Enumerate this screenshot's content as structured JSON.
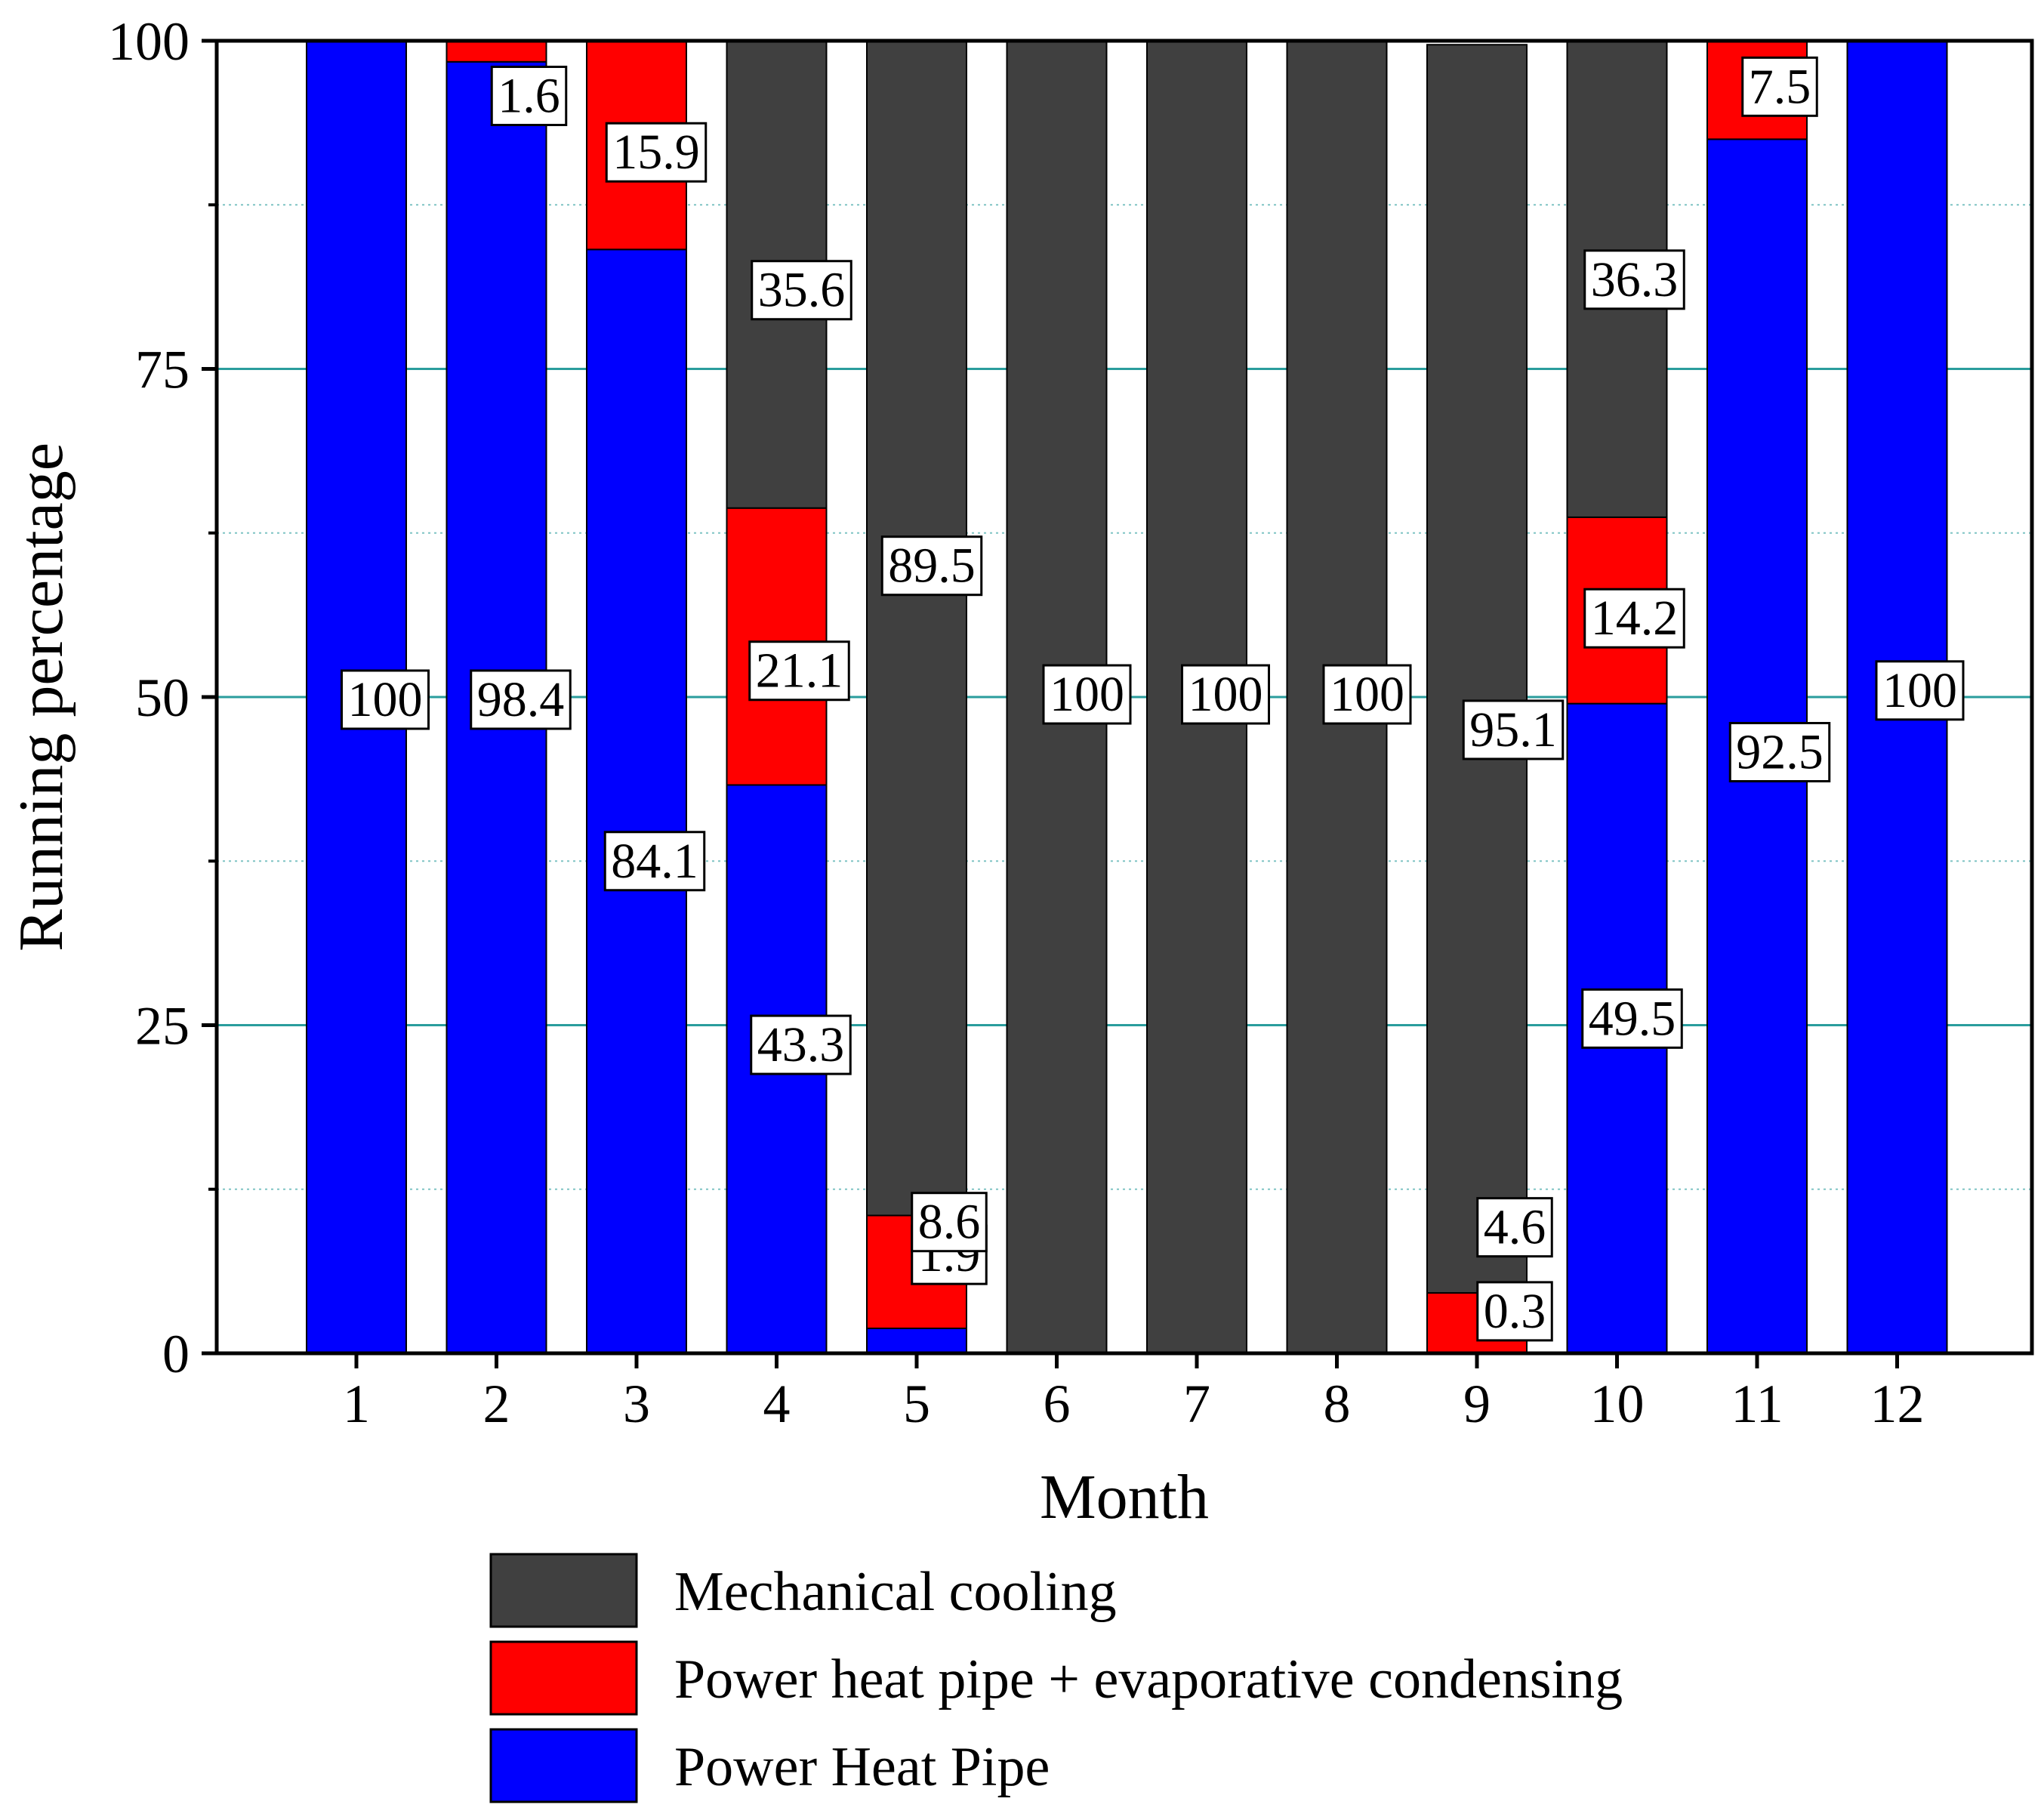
{
  "chart_data": {
    "type": "bar",
    "stacked": true,
    "xlabel": "Month",
    "ylabel": "Running percentage",
    "ylim": [
      0,
      100
    ],
    "yticks": [
      0,
      25,
      50,
      75,
      100
    ],
    "categories": [
      "1",
      "2",
      "3",
      "4",
      "5",
      "6",
      "7",
      "8",
      "9",
      "10",
      "11",
      "12"
    ],
    "grid": true,
    "series": [
      {
        "name": "Power Heat Pipe",
        "color": "#0000ff",
        "values": [
          100,
          98.4,
          84.1,
          43.3,
          1.9,
          0,
          0,
          0,
          0,
          49.5,
          92.5,
          100
        ],
        "labels": [
          "100",
          "98.4",
          "84.1",
          "43.3",
          "1.9",
          "",
          "",
          "",
          "",
          "49.5",
          "92.5",
          "100"
        ]
      },
      {
        "name": "Power heat pipe + evaporative condensing",
        "color": "#ff0000",
        "values": [
          0,
          1.6,
          15.9,
          21.1,
          8.6,
          0,
          0,
          0,
          4.6,
          14.2,
          7.5,
          0
        ],
        "labels": [
          "",
          "1.6",
          "15.9",
          "21.1",
          "8.6",
          "",
          "",
          "",
          "4.6",
          "14.2",
          "7.5",
          ""
        ]
      },
      {
        "name": "Mechanical cooling",
        "color": "#404040",
        "values": [
          0,
          0,
          0,
          35.6,
          89.5,
          100,
          100,
          100,
          95.1,
          36.3,
          0,
          0
        ],
        "labels": [
          "",
          "",
          "",
          "35.6",
          "89.5",
          "100",
          "100",
          "100",
          "95.1",
          "36.3",
          "",
          ""
        ]
      }
    ],
    "extra_annotations": [
      {
        "category": "9",
        "text": "0.3"
      }
    ],
    "legend": {
      "position": "bottom",
      "order": [
        "Mechanical cooling",
        "Power heat pipe + evaporative condensing",
        "Power Heat Pipe"
      ]
    }
  }
}
